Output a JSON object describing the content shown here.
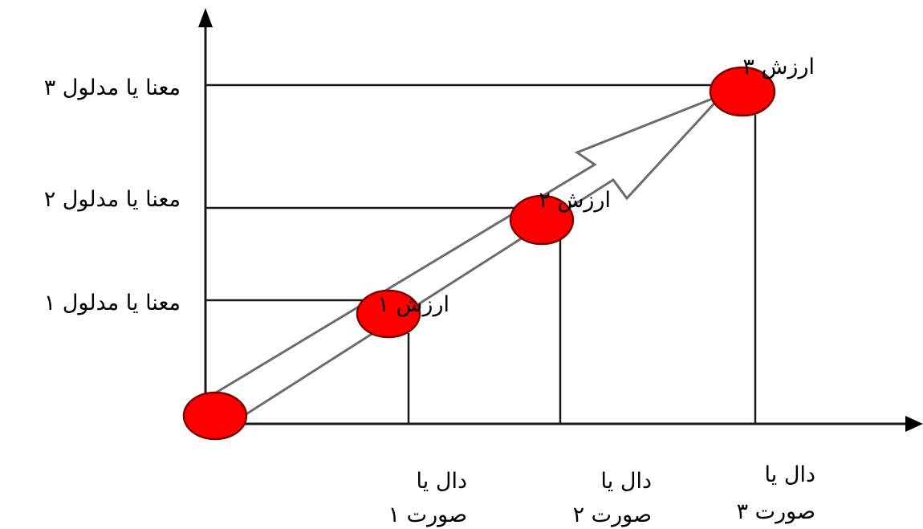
{
  "colors": {
    "node_fill": "#ff0000",
    "axis": "#000000",
    "arrow_outline": "#6b6b6b"
  },
  "meanings": [
    {
      "label": "معنا یا مدلول ۱"
    },
    {
      "label": "معنا یا مدلول ۲"
    },
    {
      "label": "معنا یا مدلول ۳"
    }
  ],
  "values": [
    {
      "label": "ارزش ۱"
    },
    {
      "label": "ارزش ۲"
    },
    {
      "label": "ارزش ۳"
    }
  ],
  "signifiers": [
    {
      "line1": "دال یا",
      "line2": "صورت ۱"
    },
    {
      "line1": "دال یا",
      "line2": "صورت ۲"
    },
    {
      "line1": "دال یا",
      "line2": "صورت ۳"
    }
  ]
}
